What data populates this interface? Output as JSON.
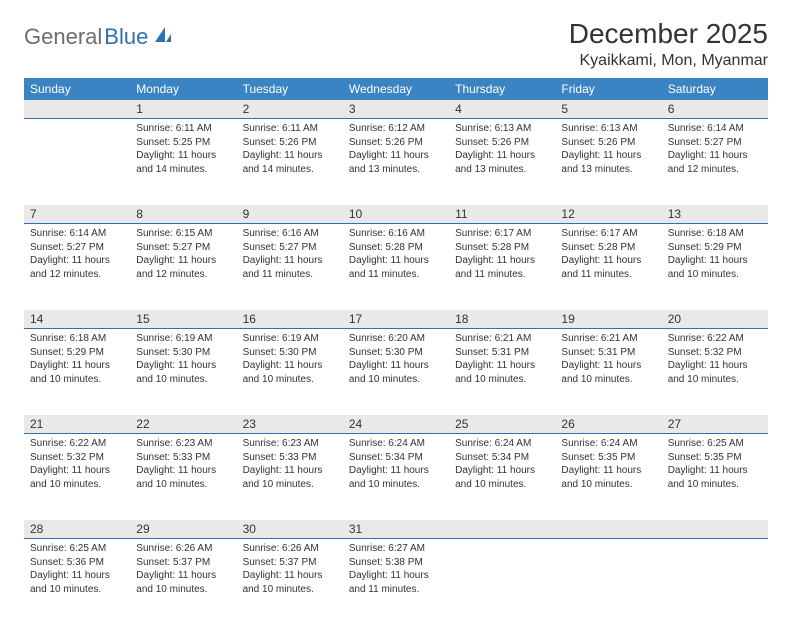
{
  "logo": {
    "text1": "General",
    "text2": "Blue"
  },
  "title": "December 2025",
  "location": "Kyaikkami, Mon, Myanmar",
  "colors": {
    "header_bg": "#3b84c4",
    "header_text": "#ffffff",
    "daynum_bg": "#e9e9e9",
    "daynum_border": "#2f6fb3",
    "body_text": "#333333",
    "logo_gray": "#6e6e6e",
    "logo_blue": "#2f6fb3"
  },
  "day_headers": [
    "Sunday",
    "Monday",
    "Tuesday",
    "Wednesday",
    "Thursday",
    "Friday",
    "Saturday"
  ],
  "weeks": [
    [
      null,
      {
        "n": "1",
        "sr": "Sunrise: 6:11 AM",
        "ss": "Sunset: 5:25 PM",
        "d1": "Daylight: 11 hours",
        "d2": "and 14 minutes."
      },
      {
        "n": "2",
        "sr": "Sunrise: 6:11 AM",
        "ss": "Sunset: 5:26 PM",
        "d1": "Daylight: 11 hours",
        "d2": "and 14 minutes."
      },
      {
        "n": "3",
        "sr": "Sunrise: 6:12 AM",
        "ss": "Sunset: 5:26 PM",
        "d1": "Daylight: 11 hours",
        "d2": "and 13 minutes."
      },
      {
        "n": "4",
        "sr": "Sunrise: 6:13 AM",
        "ss": "Sunset: 5:26 PM",
        "d1": "Daylight: 11 hours",
        "d2": "and 13 minutes."
      },
      {
        "n": "5",
        "sr": "Sunrise: 6:13 AM",
        "ss": "Sunset: 5:26 PM",
        "d1": "Daylight: 11 hours",
        "d2": "and 13 minutes."
      },
      {
        "n": "6",
        "sr": "Sunrise: 6:14 AM",
        "ss": "Sunset: 5:27 PM",
        "d1": "Daylight: 11 hours",
        "d2": "and 12 minutes."
      }
    ],
    [
      {
        "n": "7",
        "sr": "Sunrise: 6:14 AM",
        "ss": "Sunset: 5:27 PM",
        "d1": "Daylight: 11 hours",
        "d2": "and 12 minutes."
      },
      {
        "n": "8",
        "sr": "Sunrise: 6:15 AM",
        "ss": "Sunset: 5:27 PM",
        "d1": "Daylight: 11 hours",
        "d2": "and 12 minutes."
      },
      {
        "n": "9",
        "sr": "Sunrise: 6:16 AM",
        "ss": "Sunset: 5:27 PM",
        "d1": "Daylight: 11 hours",
        "d2": "and 11 minutes."
      },
      {
        "n": "10",
        "sr": "Sunrise: 6:16 AM",
        "ss": "Sunset: 5:28 PM",
        "d1": "Daylight: 11 hours",
        "d2": "and 11 minutes."
      },
      {
        "n": "11",
        "sr": "Sunrise: 6:17 AM",
        "ss": "Sunset: 5:28 PM",
        "d1": "Daylight: 11 hours",
        "d2": "and 11 minutes."
      },
      {
        "n": "12",
        "sr": "Sunrise: 6:17 AM",
        "ss": "Sunset: 5:28 PM",
        "d1": "Daylight: 11 hours",
        "d2": "and 11 minutes."
      },
      {
        "n": "13",
        "sr": "Sunrise: 6:18 AM",
        "ss": "Sunset: 5:29 PM",
        "d1": "Daylight: 11 hours",
        "d2": "and 10 minutes."
      }
    ],
    [
      {
        "n": "14",
        "sr": "Sunrise: 6:18 AM",
        "ss": "Sunset: 5:29 PM",
        "d1": "Daylight: 11 hours",
        "d2": "and 10 minutes."
      },
      {
        "n": "15",
        "sr": "Sunrise: 6:19 AM",
        "ss": "Sunset: 5:30 PM",
        "d1": "Daylight: 11 hours",
        "d2": "and 10 minutes."
      },
      {
        "n": "16",
        "sr": "Sunrise: 6:19 AM",
        "ss": "Sunset: 5:30 PM",
        "d1": "Daylight: 11 hours",
        "d2": "and 10 minutes."
      },
      {
        "n": "17",
        "sr": "Sunrise: 6:20 AM",
        "ss": "Sunset: 5:30 PM",
        "d1": "Daylight: 11 hours",
        "d2": "and 10 minutes."
      },
      {
        "n": "18",
        "sr": "Sunrise: 6:21 AM",
        "ss": "Sunset: 5:31 PM",
        "d1": "Daylight: 11 hours",
        "d2": "and 10 minutes."
      },
      {
        "n": "19",
        "sr": "Sunrise: 6:21 AM",
        "ss": "Sunset: 5:31 PM",
        "d1": "Daylight: 11 hours",
        "d2": "and 10 minutes."
      },
      {
        "n": "20",
        "sr": "Sunrise: 6:22 AM",
        "ss": "Sunset: 5:32 PM",
        "d1": "Daylight: 11 hours",
        "d2": "and 10 minutes."
      }
    ],
    [
      {
        "n": "21",
        "sr": "Sunrise: 6:22 AM",
        "ss": "Sunset: 5:32 PM",
        "d1": "Daylight: 11 hours",
        "d2": "and 10 minutes."
      },
      {
        "n": "22",
        "sr": "Sunrise: 6:23 AM",
        "ss": "Sunset: 5:33 PM",
        "d1": "Daylight: 11 hours",
        "d2": "and 10 minutes."
      },
      {
        "n": "23",
        "sr": "Sunrise: 6:23 AM",
        "ss": "Sunset: 5:33 PM",
        "d1": "Daylight: 11 hours",
        "d2": "and 10 minutes."
      },
      {
        "n": "24",
        "sr": "Sunrise: 6:24 AM",
        "ss": "Sunset: 5:34 PM",
        "d1": "Daylight: 11 hours",
        "d2": "and 10 minutes."
      },
      {
        "n": "25",
        "sr": "Sunrise: 6:24 AM",
        "ss": "Sunset: 5:34 PM",
        "d1": "Daylight: 11 hours",
        "d2": "and 10 minutes."
      },
      {
        "n": "26",
        "sr": "Sunrise: 6:24 AM",
        "ss": "Sunset: 5:35 PM",
        "d1": "Daylight: 11 hours",
        "d2": "and 10 minutes."
      },
      {
        "n": "27",
        "sr": "Sunrise: 6:25 AM",
        "ss": "Sunset: 5:35 PM",
        "d1": "Daylight: 11 hours",
        "d2": "and 10 minutes."
      }
    ],
    [
      {
        "n": "28",
        "sr": "Sunrise: 6:25 AM",
        "ss": "Sunset: 5:36 PM",
        "d1": "Daylight: 11 hours",
        "d2": "and 10 minutes."
      },
      {
        "n": "29",
        "sr": "Sunrise: 6:26 AM",
        "ss": "Sunset: 5:37 PM",
        "d1": "Daylight: 11 hours",
        "d2": "and 10 minutes."
      },
      {
        "n": "30",
        "sr": "Sunrise: 6:26 AM",
        "ss": "Sunset: 5:37 PM",
        "d1": "Daylight: 11 hours",
        "d2": "and 10 minutes."
      },
      {
        "n": "31",
        "sr": "Sunrise: 6:27 AM",
        "ss": "Sunset: 5:38 PM",
        "d1": "Daylight: 11 hours",
        "d2": "and 11 minutes."
      },
      null,
      null,
      null
    ]
  ]
}
